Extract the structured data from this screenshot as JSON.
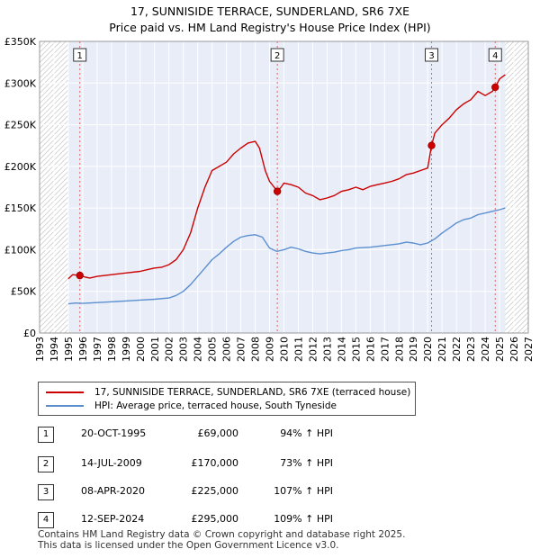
{
  "title_line1": "17, SUNNISIDE TERRACE, SUNDERLAND, SR6 7XE",
  "title_line2": "Price paid vs. HM Land Registry's House Price Index (HPI)",
  "legend": {
    "property_label": "17, SUNNISIDE TERRACE, SUNDERLAND, SR6 7XE (terraced house)",
    "hpi_label": "HPI: Average price, terraced house, South Tyneside"
  },
  "colors": {
    "property": "#cc0000",
    "hpi": "#5b8fd0",
    "bg_shade": "#e8edf7",
    "grid": "#ffffff",
    "vline": "#e06666"
  },
  "sales": [
    {
      "num": "1",
      "date": "20-OCT-1995",
      "price": "£69,000",
      "hpi": "94% ↑ HPI"
    },
    {
      "num": "2",
      "date": "14-JUL-2009",
      "price": "£170,000",
      "hpi": "73% ↑ HPI"
    },
    {
      "num": "3",
      "date": "08-APR-2020",
      "price": "£225,000",
      "hpi": "107% ↑ HPI"
    },
    {
      "num": "4",
      "date": "12-SEP-2024",
      "price": "£295,000",
      "hpi": "109% ↑ HPI"
    }
  ],
  "footer_line1": "Contains HM Land Registry data © Crown copyright and database right 2025.",
  "footer_line2": "This data is licensed under the Open Government Licence v3.0.",
  "chart_data": {
    "type": "line",
    "title": "17, SUNNISIDE TERRACE, SUNDERLAND, SR6 7XE — Price paid vs. HM Land Registry's House Price Index (HPI)",
    "xlim": [
      1993,
      2027
    ],
    "ylim": [
      0,
      350000
    ],
    "x_ticks": [
      1993,
      1994,
      1995,
      1996,
      1997,
      1998,
      1999,
      2000,
      2001,
      2002,
      2003,
      2004,
      2005,
      2006,
      2007,
      2008,
      2009,
      2010,
      2011,
      2012,
      2013,
      2014,
      2015,
      2016,
      2017,
      2018,
      2019,
      2020,
      2021,
      2022,
      2023,
      2024,
      2025,
      2026,
      2027
    ],
    "y_ticks": [
      0,
      50000,
      100000,
      150000,
      200000,
      250000,
      300000,
      350000
    ],
    "y_tick_labels": [
      "£0",
      "£50K",
      "£100K",
      "£150K",
      "£200K",
      "£250K",
      "£300K",
      "£350K"
    ],
    "data_start": 1995.0,
    "data_end": 2025.4,
    "series": [
      {
        "name": "17, SUNNISIDE TERRACE, SUNDERLAND, SR6 7XE (terraced house)",
        "color": "#cc0000",
        "points": [
          [
            1995.0,
            65000
          ],
          [
            1995.3,
            70000
          ],
          [
            1995.8,
            69000
          ],
          [
            1996.2,
            67000
          ],
          [
            1996.5,
            66000
          ],
          [
            1997,
            68000
          ],
          [
            1998,
            70000
          ],
          [
            1999,
            72000
          ],
          [
            2000,
            74000
          ],
          [
            2000.5,
            76000
          ],
          [
            2001,
            78000
          ],
          [
            2001.5,
            79000
          ],
          [
            2002,
            82000
          ],
          [
            2002.5,
            88000
          ],
          [
            2003,
            100000
          ],
          [
            2003.5,
            120000
          ],
          [
            2004,
            150000
          ],
          [
            2004.5,
            175000
          ],
          [
            2005,
            195000
          ],
          [
            2005.5,
            200000
          ],
          [
            2006,
            205000
          ],
          [
            2006.5,
            215000
          ],
          [
            2007,
            222000
          ],
          [
            2007.5,
            228000
          ],
          [
            2008,
            230000
          ],
          [
            2008.3,
            222000
          ],
          [
            2008.7,
            195000
          ],
          [
            2009,
            182000
          ],
          [
            2009.54,
            170000
          ],
          [
            2009.8,
            175000
          ],
          [
            2010,
            180000
          ],
          [
            2010.5,
            178000
          ],
          [
            2011,
            175000
          ],
          [
            2011.5,
            168000
          ],
          [
            2012,
            165000
          ],
          [
            2012.5,
            160000
          ],
          [
            2013,
            162000
          ],
          [
            2013.5,
            165000
          ],
          [
            2014,
            170000
          ],
          [
            2014.5,
            172000
          ],
          [
            2015,
            175000
          ],
          [
            2015.5,
            172000
          ],
          [
            2016,
            176000
          ],
          [
            2016.5,
            178000
          ],
          [
            2017,
            180000
          ],
          [
            2017.5,
            182000
          ],
          [
            2018,
            185000
          ],
          [
            2018.5,
            190000
          ],
          [
            2019,
            192000
          ],
          [
            2019.5,
            195000
          ],
          [
            2020,
            198000
          ],
          [
            2020.27,
            225000
          ],
          [
            2020.5,
            240000
          ],
          [
            2021,
            250000
          ],
          [
            2021.5,
            258000
          ],
          [
            2022,
            268000
          ],
          [
            2022.5,
            275000
          ],
          [
            2023,
            280000
          ],
          [
            2023.5,
            290000
          ],
          [
            2024,
            285000
          ],
          [
            2024.5,
            290000
          ],
          [
            2024.7,
            295000
          ],
          [
            2025,
            305000
          ],
          [
            2025.4,
            310000
          ]
        ]
      },
      {
        "name": "HPI: Average price, terraced house, South Tyneside",
        "color": "#5b8fd0",
        "points": [
          [
            1995.0,
            35000
          ],
          [
            1995.5,
            36000
          ],
          [
            1996,
            35500
          ],
          [
            1997,
            36500
          ],
          [
            1998,
            37500
          ],
          [
            1999,
            38500
          ],
          [
            2000,
            39500
          ],
          [
            2001,
            40500
          ],
          [
            2002,
            42000
          ],
          [
            2002.5,
            45000
          ],
          [
            2003,
            50000
          ],
          [
            2003.5,
            58000
          ],
          [
            2004,
            68000
          ],
          [
            2004.5,
            78000
          ],
          [
            2005,
            88000
          ],
          [
            2005.5,
            95000
          ],
          [
            2006,
            103000
          ],
          [
            2006.5,
            110000
          ],
          [
            2007,
            115000
          ],
          [
            2007.5,
            117000
          ],
          [
            2008,
            118000
          ],
          [
            2008.5,
            115000
          ],
          [
            2009,
            102000
          ],
          [
            2009.5,
            98000
          ],
          [
            2010,
            100000
          ],
          [
            2010.5,
            103000
          ],
          [
            2011,
            101000
          ],
          [
            2011.5,
            98000
          ],
          [
            2012,
            96000
          ],
          [
            2012.5,
            95000
          ],
          [
            2013,
            96000
          ],
          [
            2013.5,
            97000
          ],
          [
            2014,
            99000
          ],
          [
            2014.5,
            100000
          ],
          [
            2015,
            102000
          ],
          [
            2016,
            103000
          ],
          [
            2017,
            105000
          ],
          [
            2018,
            107000
          ],
          [
            2018.5,
            109000
          ],
          [
            2019,
            108000
          ],
          [
            2019.5,
            106000
          ],
          [
            2020,
            108000
          ],
          [
            2020.5,
            113000
          ],
          [
            2021,
            120000
          ],
          [
            2021.5,
            126000
          ],
          [
            2022,
            132000
          ],
          [
            2022.5,
            136000
          ],
          [
            2023,
            138000
          ],
          [
            2023.5,
            142000
          ],
          [
            2024,
            144000
          ],
          [
            2024.5,
            146000
          ],
          [
            2025,
            148000
          ],
          [
            2025.4,
            150000
          ]
        ]
      }
    ],
    "annotations": [
      {
        "label": "1",
        "x": 1995.8,
        "y": 69000
      },
      {
        "label": "2",
        "x": 2009.54,
        "y": 170000
      },
      {
        "label": "3",
        "x": 2020.27,
        "y": 225000
      },
      {
        "label": "4",
        "x": 2024.7,
        "y": 295000
      }
    ]
  }
}
